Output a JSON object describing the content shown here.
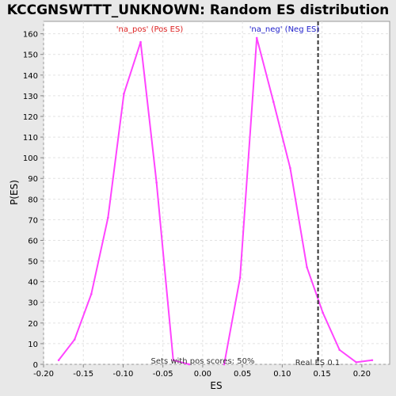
{
  "chart_data": {
    "type": "line",
    "title": "KCCGNSWTTT_UNKNOWN: Random ES distribution",
    "xlabel": "ES",
    "ylabel": "P(ES)",
    "xlim": [
      -0.2,
      0.235
    ],
    "ylim": [
      0,
      166
    ],
    "xticks": [
      -0.2,
      -0.15,
      -0.1,
      -0.05,
      0.0,
      0.05,
      0.1,
      0.15,
      0.2
    ],
    "xtick_labels": [
      "-0.20",
      "-0.15",
      "-0.10",
      "-0.05",
      "0.00",
      "0.05",
      "0.10",
      "0.15",
      "0.20"
    ],
    "yticks": [
      0,
      10,
      20,
      30,
      40,
      50,
      60,
      70,
      80,
      90,
      100,
      110,
      120,
      130,
      140,
      150,
      160
    ],
    "grid": true,
    "series": [
      {
        "name": "'na_pos' (Pos ES)",
        "color": "#ff44ff",
        "points": [
          [
            -0.181,
            2
          ],
          [
            -0.161,
            12
          ],
          [
            -0.14,
            34
          ],
          [
            -0.119,
            71
          ],
          [
            -0.099,
            131
          ],
          [
            -0.078,
            156
          ],
          [
            -0.058,
            88
          ],
          [
            -0.037,
            2
          ],
          [
            -0.017,
            0
          ]
        ]
      },
      {
        "name": "'na_neg' (Neg ES)",
        "color": "#ff44ff",
        "points": [
          [
            0.027,
            0
          ],
          [
            0.047,
            42
          ],
          [
            0.068,
            158
          ],
          [
            0.089,
            127
          ],
          [
            0.11,
            95
          ],
          [
            0.131,
            47
          ],
          [
            0.151,
            25
          ],
          [
            0.172,
            7
          ],
          [
            0.193,
            1
          ],
          [
            0.213,
            2
          ]
        ]
      }
    ],
    "annotations": {
      "pos_label": "'na_pos' (Pos ES)",
      "pos_label_color": "#dd2222",
      "neg_label": "'na_neg' (Neg ES)",
      "neg_label_color": "#2222cc",
      "sets_text": "Sets with pos scores: 50%",
      "real_es_text": "Real ES 0.1",
      "real_es_value": 0.145
    },
    "colors": {
      "line": "#ff44ff",
      "plot_bg": "#ffffff",
      "grid": "#e2e2e2",
      "axis": "#888888",
      "real_es_line": "#333333"
    }
  }
}
